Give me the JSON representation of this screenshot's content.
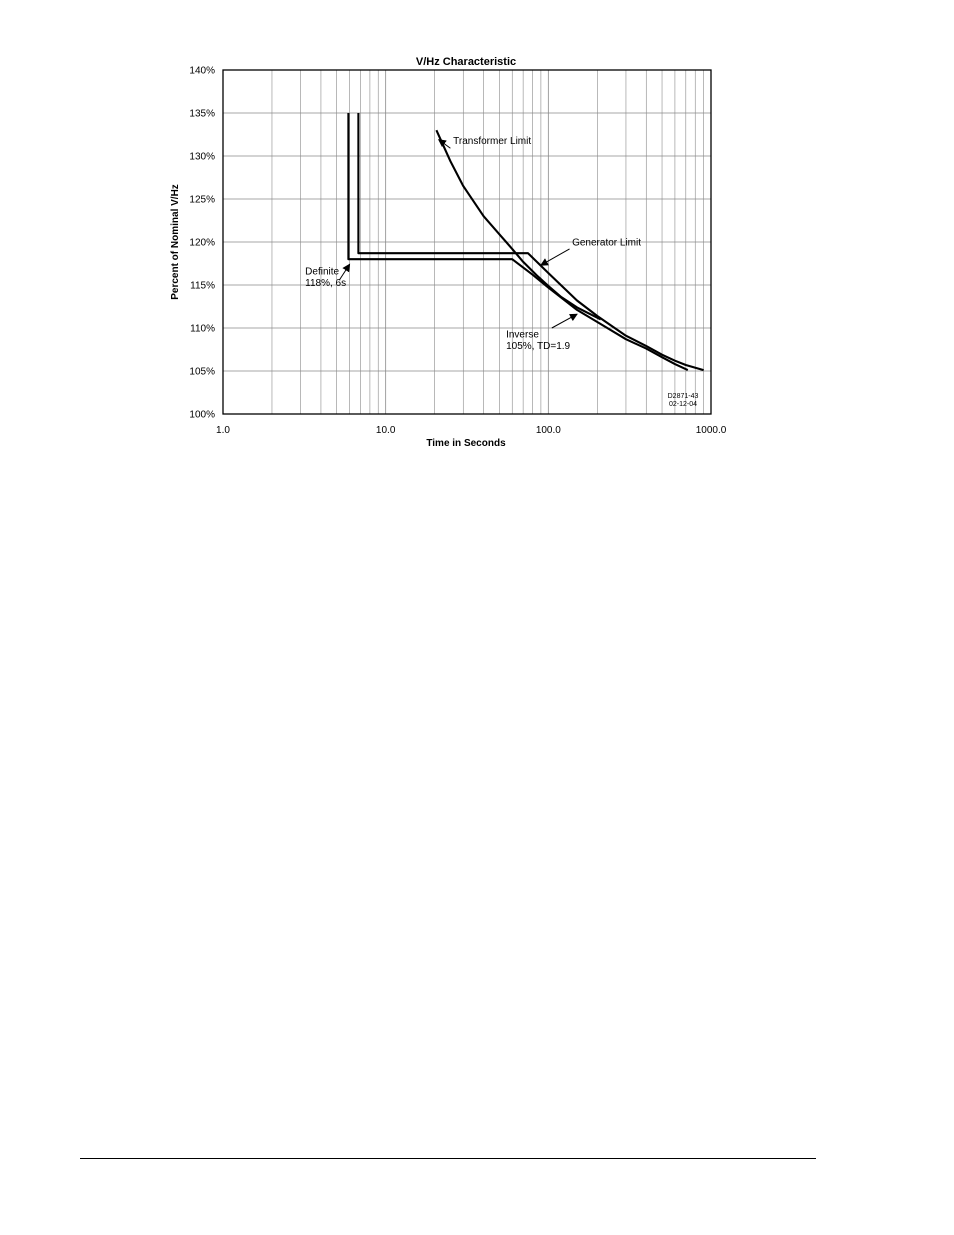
{
  "chart_data": {
    "type": "line",
    "title": "V/Hz Characteristic",
    "xlabel": "Time in Seconds",
    "ylabel": "Percent of Nominal V/Hz",
    "x_scale": "log",
    "xlim": [
      1,
      1000
    ],
    "ylim": [
      100,
      140
    ],
    "x_ticks": [
      1,
      10,
      100,
      1000
    ],
    "x_tick_labels": [
      "1.0",
      "10.0",
      "100.0",
      "1000.0"
    ],
    "y_ticks": [
      100,
      105,
      110,
      115,
      120,
      125,
      130,
      135,
      140
    ],
    "y_tick_labels": [
      "100%",
      "105%",
      "110%",
      "115%",
      "120%",
      "125%",
      "130%",
      "135%",
      "140%"
    ],
    "grid": true,
    "series": [
      {
        "name": "Transformer Limit",
        "x": [
          20.5,
          25,
          30,
          40,
          50,
          60,
          70,
          85,
          100,
          120,
          150,
          210
        ],
        "y": [
          133,
          129.4,
          126.5,
          123,
          120.9,
          119.2,
          117.7,
          116.1,
          114.9,
          113.6,
          112.4,
          111
        ]
      },
      {
        "name": "Generator Limit",
        "x": [
          6.8,
          6.8,
          75,
          100,
          150,
          200,
          300,
          400,
          500,
          600,
          700,
          900
        ],
        "y": [
          135,
          118.7,
          118.7,
          116.4,
          113.2,
          111.4,
          109.1,
          107.9,
          106.9,
          106.2,
          105.7,
          105.1
        ]
      },
      {
        "name": "Inverse 105%, TD=1.9",
        "x": [
          5.9,
          5.9,
          60,
          80,
          100,
          150,
          200,
          300,
          400,
          500,
          600,
          720
        ],
        "y": [
          135,
          118,
          118,
          116.2,
          114.7,
          112.1,
          110.7,
          108.7,
          107.6,
          106.6,
          105.8,
          105.1
        ]
      }
    ],
    "annotations": [
      {
        "lines": [
          "Transformer Limit"
        ],
        "text_x": 26,
        "text_y": 131.4,
        "arrow_from": [
          25,
          130.9
        ],
        "arrow_to": [
          21.2,
          131.9
        ]
      },
      {
        "lines": [
          "Generator Limit"
        ],
        "text_x": 140,
        "text_y": 119.6,
        "arrow_from": [
          135,
          119.2
        ],
        "arrow_to": [
          90,
          117.3
        ]
      },
      {
        "lines": [
          "Definite",
          "118%, 6s"
        ],
        "text_x": 3.2,
        "text_y": 116.2,
        "arrow_from": [
          5.2,
          115.6
        ],
        "arrow_to": [
          6.0,
          117.4
        ]
      },
      {
        "lines": [
          "Inverse",
          "105%, TD=1.9"
        ],
        "text_x": 55,
        "text_y": 108.9,
        "arrow_from": [
          105,
          110
        ],
        "arrow_to": [
          150,
          111.6
        ]
      }
    ],
    "drawing_id": [
      "D2871-43",
      "02-12-04"
    ]
  }
}
